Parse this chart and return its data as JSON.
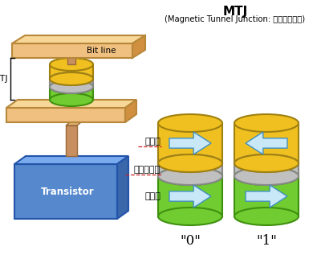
{
  "bg_color": "#ffffff",
  "title_line1": "MTJ",
  "title_line2": "(Magnetic Tunnel Junction: 자기터널접합)",
  "label_mtj": "MTJ",
  "label_bitline": "Bit line",
  "label_transistor": "Transistor",
  "label_girok": "기록층",
  "label_tunnel": "터널배리어",
  "label_gojung": "고정층",
  "label_0": "\"0\"",
  "label_1": "\"1\"",
  "colors": {
    "bitline_fill": "#f0c080",
    "bitline_edge": "#b8883a",
    "transistor_fill": "#5588cc",
    "transistor_top": "#7aabee",
    "transistor_right": "#3a66aa",
    "transistor_edge": "#2255aa",
    "stem_fill": "#c89060",
    "stem_edge": "#9a6838",
    "plate_fill": "#f0c080",
    "plate_top": "#f8d898",
    "plate_right": "#d09040",
    "plate_edge": "#b8883a",
    "yellow_layer": "#f0c020",
    "yellow_edge": "#a08010",
    "gray_layer": "#c0c0c0",
    "gray_edge": "#888888",
    "green_layer": "#70cc30",
    "green_edge": "#409010",
    "arrow_fill": "#c8e8f8",
    "arrow_edge": "#4090c0",
    "red_underline": "#cc2222"
  }
}
